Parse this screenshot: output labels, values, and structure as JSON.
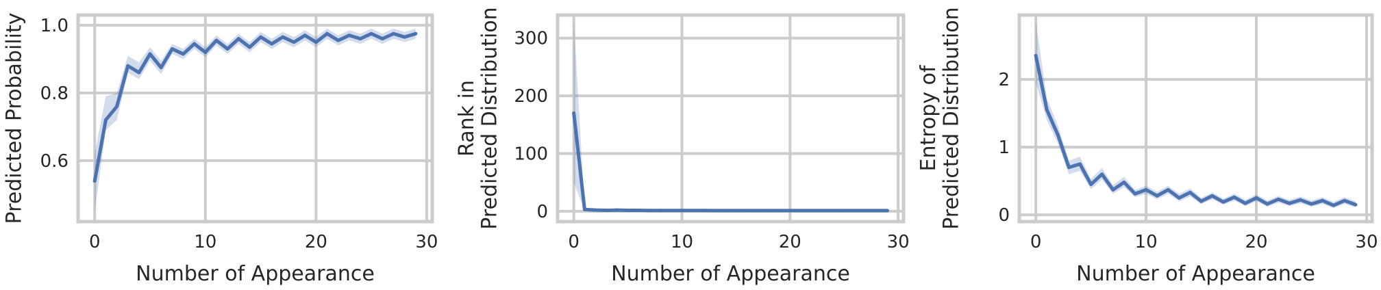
{
  "chart_data": [
    {
      "type": "line",
      "title": "",
      "xlabel": "Number of Appearance",
      "ylabel": "Predicted Probability",
      "xlim": [
        -1.5,
        30.5
      ],
      "ylim": [
        0.42,
        1.03
      ],
      "xticks": [
        0,
        10,
        20,
        30
      ],
      "xtick_labels": [
        "0",
        "10",
        "20",
        "30"
      ],
      "yticks": [
        0.6,
        0.8,
        1.0
      ],
      "ytick_labels": [
        "0.6",
        "0.8",
        "1.0"
      ],
      "grid": true,
      "line_color": "#4c72b0",
      "x": [
        0,
        1,
        2,
        3,
        4,
        5,
        6,
        7,
        8,
        9,
        10,
        11,
        12,
        13,
        14,
        15,
        16,
        17,
        18,
        19,
        20,
        21,
        22,
        23,
        24,
        25,
        26,
        27,
        28,
        29
      ],
      "y": [
        0.54,
        0.72,
        0.76,
        0.88,
        0.86,
        0.915,
        0.875,
        0.93,
        0.915,
        0.945,
        0.92,
        0.955,
        0.93,
        0.96,
        0.935,
        0.965,
        0.945,
        0.965,
        0.95,
        0.97,
        0.95,
        0.975,
        0.955,
        0.97,
        0.96,
        0.975,
        0.96,
        0.975,
        0.965,
        0.975
      ],
      "ci_lower": [
        0.45,
        0.69,
        0.72,
        0.86,
        0.84,
        0.895,
        0.855,
        0.915,
        0.9,
        0.93,
        0.905,
        0.94,
        0.915,
        0.945,
        0.92,
        0.95,
        0.93,
        0.95,
        0.935,
        0.955,
        0.935,
        0.96,
        0.94,
        0.955,
        0.945,
        0.96,
        0.945,
        0.96,
        0.95,
        0.96
      ],
      "ci_upper": [
        0.62,
        0.79,
        0.8,
        0.91,
        0.89,
        0.935,
        0.895,
        0.945,
        0.93,
        0.96,
        0.935,
        0.97,
        0.945,
        0.975,
        0.95,
        0.98,
        0.96,
        0.98,
        0.965,
        0.985,
        0.965,
        0.99,
        0.97,
        0.985,
        0.975,
        0.99,
        0.975,
        0.99,
        0.98,
        0.99
      ]
    },
    {
      "type": "line",
      "title": "",
      "xlabel": "Number of Appearance",
      "ylabel": "Rank in Predicted Distribution",
      "xlim": [
        -1.5,
        30.5
      ],
      "ylim": [
        -18,
        340
      ],
      "xticks": [
        0,
        10,
        20,
        30
      ],
      "xtick_labels": [
        "0",
        "10",
        "20",
        "30"
      ],
      "yticks": [
        0,
        100,
        200,
        300
      ],
      "ytick_labels": [
        "0",
        "100",
        "200",
        "300"
      ],
      "grid": true,
      "line_color": "#4c72b0",
      "x": [
        0,
        1,
        2,
        3,
        4,
        5,
        6,
        7,
        8,
        9,
        10,
        11,
        12,
        13,
        14,
        15,
        16,
        17,
        18,
        19,
        20,
        21,
        22,
        23,
        24,
        25,
        26,
        27,
        28,
        29
      ],
      "y": [
        170,
        3,
        2,
        1.5,
        2,
        1.5,
        1.5,
        1.2,
        1.2,
        1.2,
        1.2,
        1.3,
        1.2,
        1.1,
        1.1,
        1.1,
        1.1,
        1.1,
        1.1,
        1.1,
        1.1,
        1.1,
        1.1,
        1.1,
        1.1,
        1.1,
        1.1,
        1.1,
        1.1,
        1.1
      ],
      "ci_lower": [
        50,
        1,
        1,
        1,
        1,
        1,
        1,
        1,
        1,
        1,
        1,
        1,
        1,
        1,
        1,
        1,
        1,
        1,
        1,
        1,
        1,
        1,
        1,
        1,
        1,
        1,
        1,
        1,
        1,
        1
      ],
      "ci_upper": [
        330,
        6,
        3,
        2,
        3,
        2,
        2,
        1.5,
        1.5,
        1.5,
        1.5,
        1.6,
        1.5,
        1.3,
        1.3,
        1.3,
        1.3,
        1.3,
        1.3,
        1.3,
        1.3,
        1.3,
        1.3,
        1.3,
        1.3,
        1.3,
        1.3,
        1.3,
        1.3,
        1.3
      ]
    },
    {
      "type": "line",
      "title": "",
      "xlabel": "Number of Appearance",
      "ylabel": "Entropy of Predicted Distribution",
      "xlim": [
        -1.5,
        30.5
      ],
      "ylim": [
        -0.1,
        2.95
      ],
      "xticks": [
        0,
        10,
        20,
        30
      ],
      "xtick_labels": [
        "0",
        "10",
        "20",
        "30"
      ],
      "yticks": [
        0,
        1,
        2
      ],
      "ytick_labels": [
        "0",
        "1",
        "2"
      ],
      "grid": true,
      "line_color": "#4c72b0",
      "x": [
        0,
        1,
        2,
        3,
        4,
        5,
        6,
        7,
        8,
        9,
        10,
        11,
        12,
        13,
        14,
        15,
        16,
        17,
        18,
        19,
        20,
        21,
        22,
        23,
        24,
        25,
        26,
        27,
        28,
        29
      ],
      "y": [
        2.35,
        1.55,
        1.18,
        0.7,
        0.75,
        0.45,
        0.6,
        0.37,
        0.48,
        0.31,
        0.37,
        0.28,
        0.37,
        0.25,
        0.33,
        0.2,
        0.28,
        0.19,
        0.26,
        0.17,
        0.25,
        0.16,
        0.23,
        0.17,
        0.22,
        0.16,
        0.21,
        0.14,
        0.21,
        0.15
      ],
      "ci_lower": [
        1.95,
        1.4,
        1.05,
        0.6,
        0.65,
        0.38,
        0.52,
        0.31,
        0.41,
        0.26,
        0.31,
        0.23,
        0.31,
        0.2,
        0.27,
        0.16,
        0.23,
        0.15,
        0.21,
        0.13,
        0.2,
        0.12,
        0.18,
        0.13,
        0.17,
        0.12,
        0.16,
        0.1,
        0.16,
        0.11
      ],
      "ci_upper": [
        2.85,
        1.72,
        1.32,
        0.8,
        0.86,
        0.53,
        0.69,
        0.44,
        0.56,
        0.37,
        0.43,
        0.34,
        0.43,
        0.31,
        0.39,
        0.25,
        0.33,
        0.24,
        0.31,
        0.22,
        0.3,
        0.21,
        0.28,
        0.22,
        0.27,
        0.21,
        0.26,
        0.19,
        0.26,
        0.2
      ]
    }
  ]
}
